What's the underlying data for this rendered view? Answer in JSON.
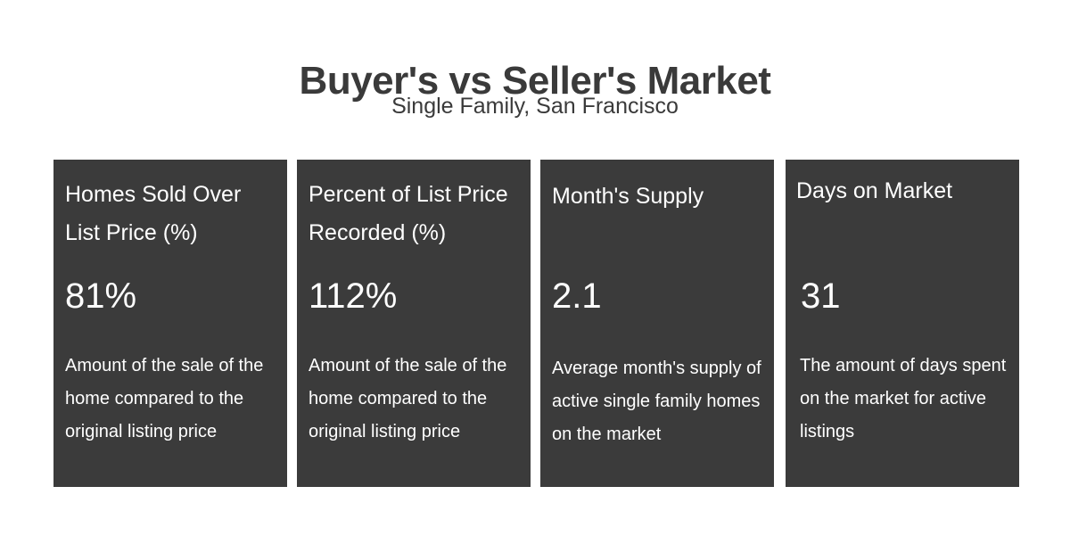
{
  "header": {
    "title": "Buyer's vs Seller's Market",
    "subtitle": "Single Family, San Francisco"
  },
  "cards": [
    {
      "heading": "Homes Sold Over List Price (%)",
      "value": "81%",
      "description": "Amount of the sale of the home compared to the original listing price"
    },
    {
      "heading": "Percent of List Price Recorded (%)",
      "value": "112%",
      "description": "Amount of the sale of the home compared to the original listing price"
    },
    {
      "heading": "Month's Supply",
      "value": "2.1",
      "description": "Average month's supply of active single family homes on the market"
    },
    {
      "heading": "Days on Market",
      "value": "31",
      "description": "The amount of days spent on the market for active listings"
    }
  ],
  "colors": {
    "card_background": "#3b3b3b",
    "card_text": "#ffffff",
    "title_text": "#3a3a3a",
    "page_background": "#ffffff"
  }
}
